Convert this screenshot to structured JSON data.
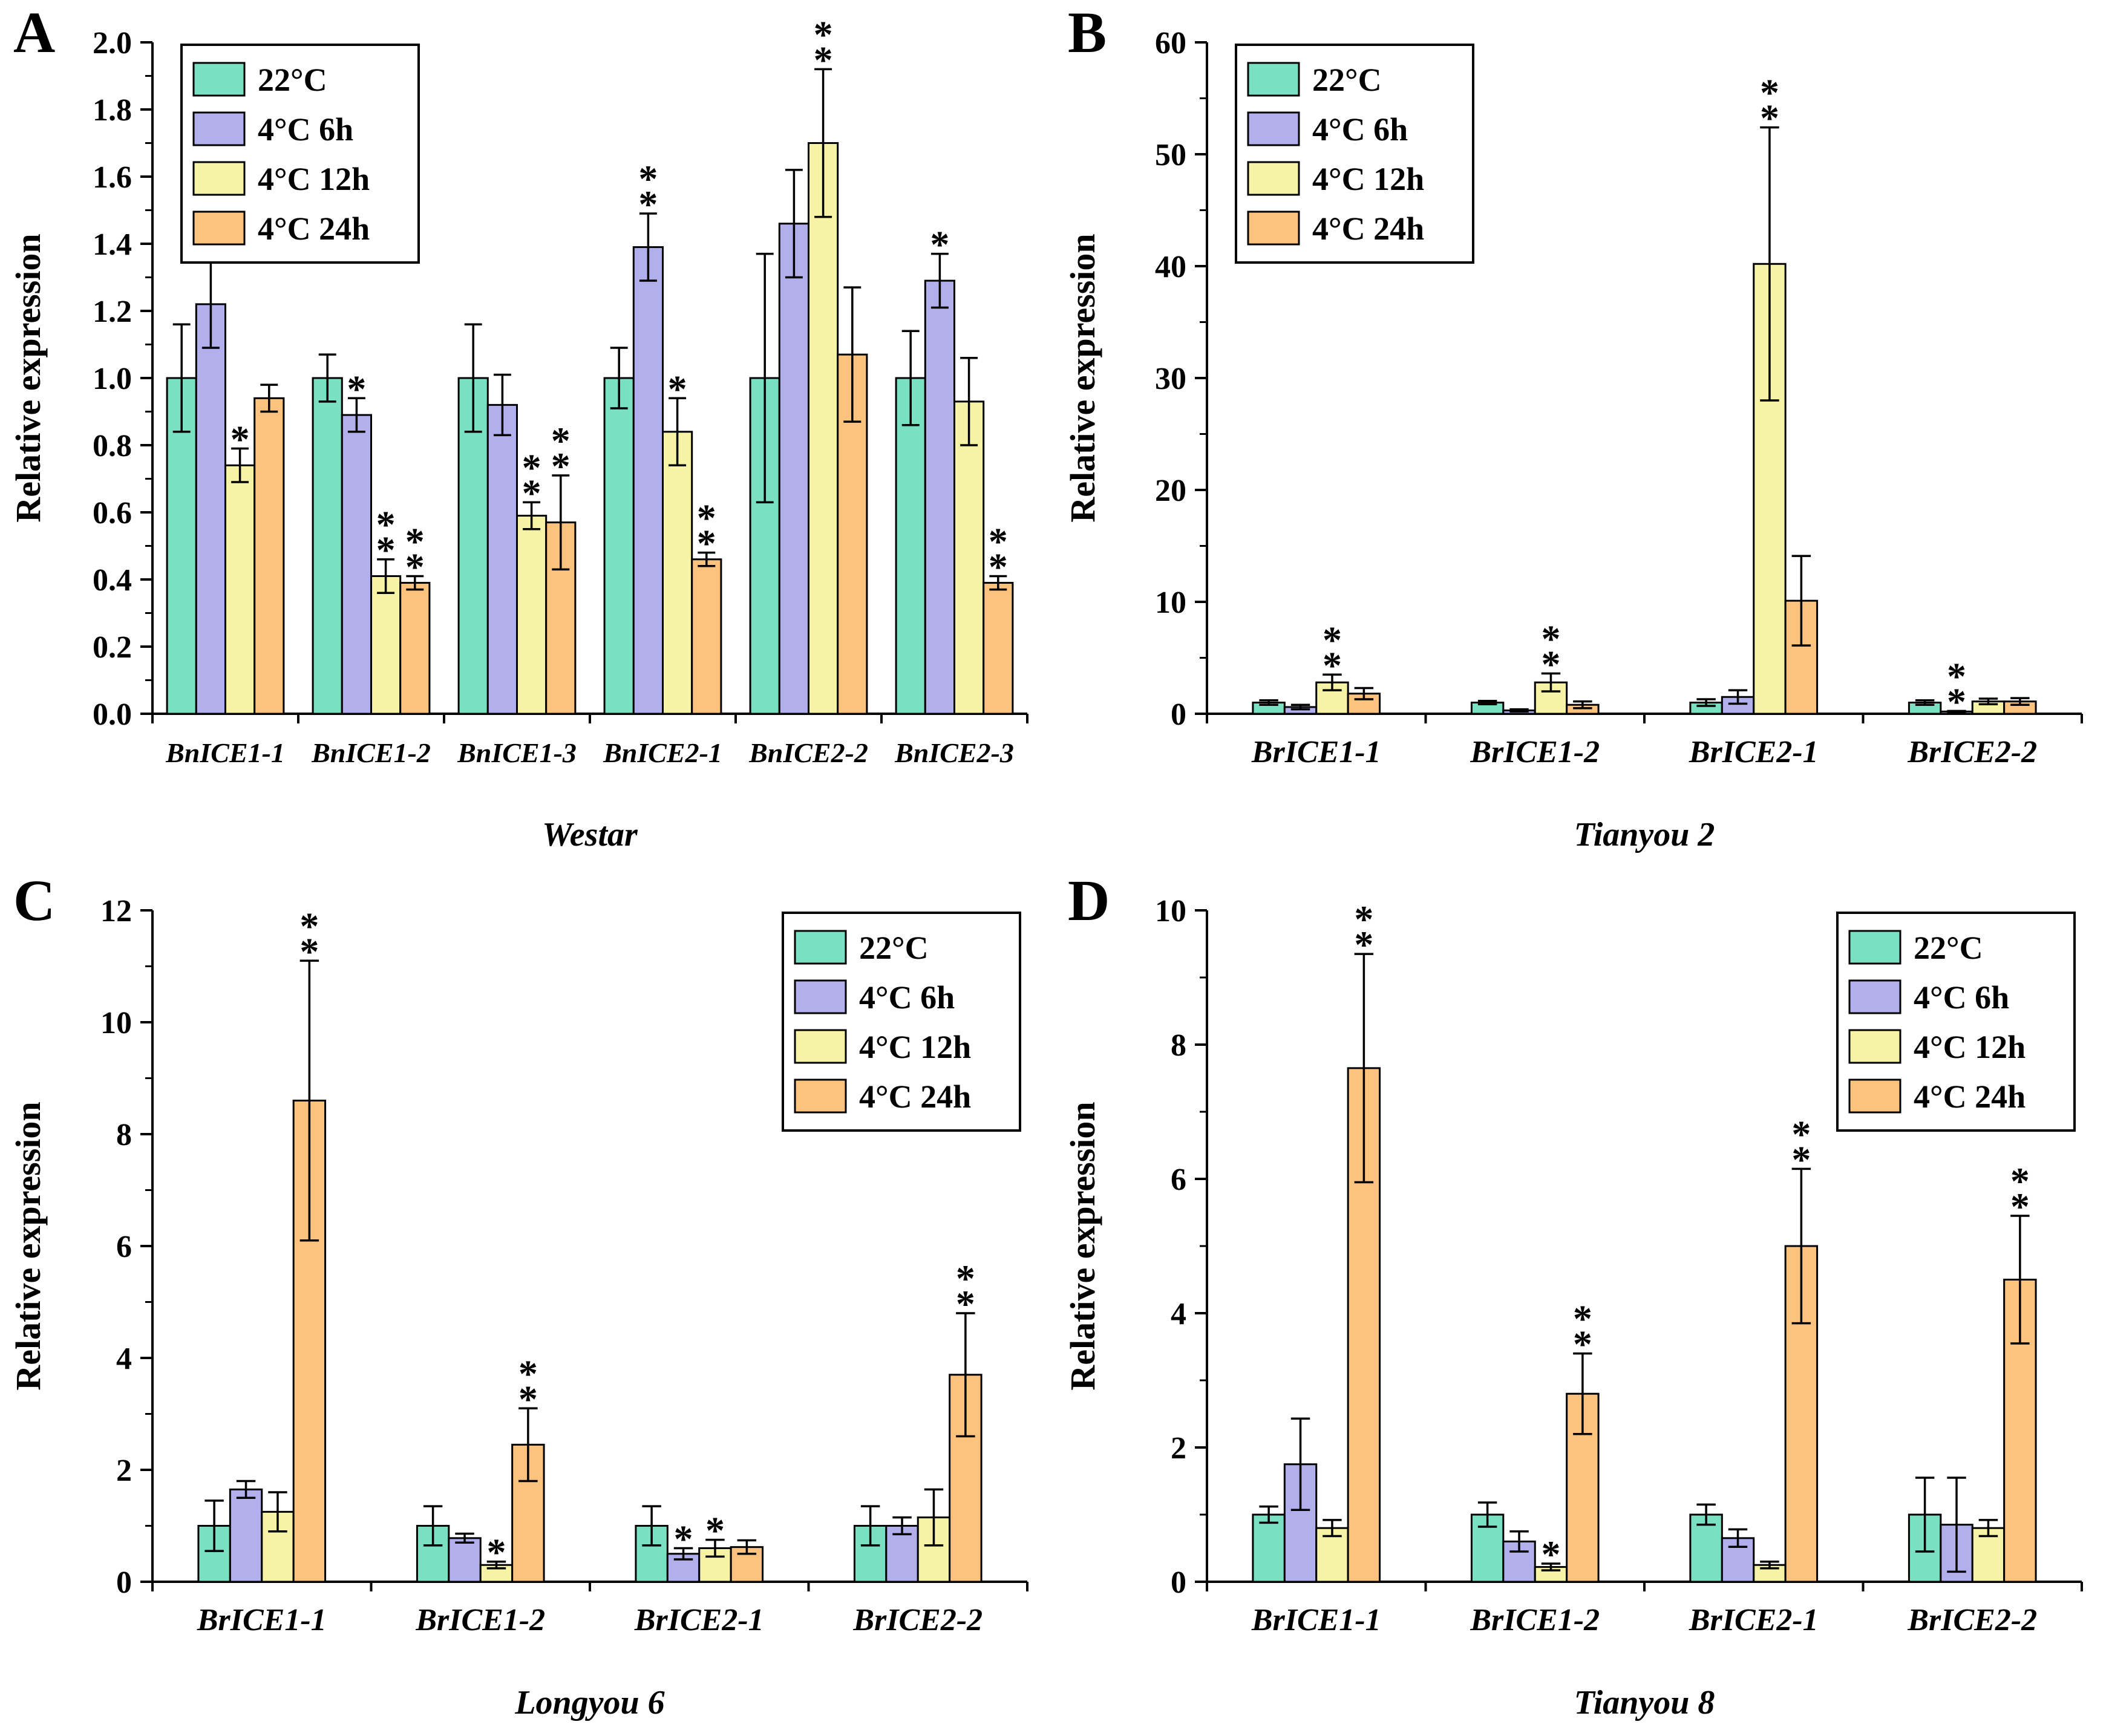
{
  "figure": {
    "background": "#ffffff",
    "ylabel": "Relative expression"
  },
  "legend": {
    "items": [
      {
        "label": "22°C",
        "color": "#79e0c2"
      },
      {
        "label": "4°C 6h",
        "color": "#b2b0ec"
      },
      {
        "label": "4°C 12h",
        "color": "#f7f3a6"
      },
      {
        "label": "4°C 24h",
        "color": "#fbc37e"
      }
    ]
  },
  "style": {
    "axis_color": "#000000",
    "bar_edge_color": "#000000",
    "error_bar_color": "#000000",
    "significance_marker": "*"
  },
  "chart_data": [
    {
      "type": "bar",
      "panel": "A",
      "title": "Westar",
      "ylabel": "Relative expression",
      "ylim": [
        0,
        2.0
      ],
      "ytick_step": 0.2,
      "ytick_decimals": 1,
      "legend_position": "top-left",
      "bar_group_fraction": 0.8,
      "grid": false,
      "categories": [
        "BnICE1-1",
        "BnICE1-2",
        "BnICE1-3",
        "BnICE2-1",
        "BnICE2-2",
        "BnICE2-3"
      ],
      "series": [
        {
          "name": "22°C",
          "values": [
            1.0,
            1.0,
            1.0,
            1.0,
            1.0,
            1.0
          ],
          "errors": [
            0.16,
            0.07,
            0.16,
            0.09,
            0.37,
            0.14
          ],
          "sig": [
            "",
            "",
            "",
            "",
            "",
            ""
          ]
        },
        {
          "name": "4°C 6h",
          "values": [
            1.22,
            0.89,
            0.92,
            1.39,
            1.46,
            1.29
          ],
          "errors": [
            0.13,
            0.05,
            0.09,
            0.1,
            0.16,
            0.08
          ],
          "sig": [
            "*",
            "*",
            "",
            "**",
            "",
            "*"
          ]
        },
        {
          "name": "4°C 12h",
          "values": [
            0.74,
            0.41,
            0.59,
            0.84,
            1.7,
            0.93
          ],
          "errors": [
            0.05,
            0.05,
            0.04,
            0.1,
            0.22,
            0.13
          ],
          "sig": [
            "*",
            "**",
            "**",
            "*",
            "**",
            ""
          ]
        },
        {
          "name": "4°C 24h",
          "values": [
            0.94,
            0.39,
            0.57,
            0.46,
            1.07,
            0.39
          ],
          "errors": [
            0.04,
            0.02,
            0.14,
            0.02,
            0.2,
            0.02
          ],
          "sig": [
            "",
            "**",
            "**",
            "**",
            "",
            "**"
          ]
        }
      ]
    },
    {
      "type": "bar",
      "panel": "B",
      "title": "Tianyou 2",
      "ylabel": "Relative expression",
      "ylim": [
        0,
        60
      ],
      "ytick_step": 10,
      "ytick_decimals": 0,
      "legend_position": "top-left",
      "bar_group_fraction": 0.58,
      "grid": false,
      "categories": [
        "BrICE1-1",
        "BrICE1-2",
        "BrICE2-1",
        "BrICE2-2"
      ],
      "series": [
        {
          "name": "22°C",
          "values": [
            1.0,
            1.0,
            1.0,
            1.0
          ],
          "errors": [
            0.2,
            0.15,
            0.3,
            0.2
          ],
          "sig": [
            "",
            "",
            "",
            ""
          ]
        },
        {
          "name": "4°C 6h",
          "values": [
            0.6,
            0.3,
            1.5,
            0.2
          ],
          "errors": [
            0.2,
            0.1,
            0.6,
            0.05
          ],
          "sig": [
            "",
            "",
            "",
            "**"
          ]
        },
        {
          "name": "4°C 12h",
          "values": [
            2.8,
            2.8,
            40.2,
            1.1
          ],
          "errors": [
            0.7,
            0.8,
            12.2,
            0.25
          ],
          "sig": [
            "**",
            "**",
            "**",
            ""
          ]
        },
        {
          "name": "4°C 24h",
          "values": [
            1.8,
            0.8,
            10.1,
            1.1
          ],
          "errors": [
            0.5,
            0.3,
            4.0,
            0.3
          ],
          "sig": [
            "",
            "",
            "",
            ""
          ]
        }
      ]
    },
    {
      "type": "bar",
      "panel": "C",
      "title": "Longyou 6",
      "ylabel": "Relative expression",
      "ylim": [
        0,
        12
      ],
      "ytick_step": 2,
      "ytick_decimals": 0,
      "legend_position": "top-right",
      "bar_group_fraction": 0.58,
      "grid": false,
      "categories": [
        "BrICE1-1",
        "BrICE1-2",
        "BrICE2-1",
        "BrICE2-2"
      ],
      "series": [
        {
          "name": "22°C",
          "values": [
            1.0,
            1.0,
            1.0,
            1.0
          ],
          "errors": [
            0.45,
            0.35,
            0.35,
            0.35
          ],
          "sig": [
            "",
            "",
            "",
            ""
          ]
        },
        {
          "name": "4°C 6h",
          "values": [
            1.65,
            0.78,
            0.5,
            1.0
          ],
          "errors": [
            0.15,
            0.08,
            0.1,
            0.15
          ],
          "sig": [
            "",
            "",
            "*",
            ""
          ]
        },
        {
          "name": "4°C 12h",
          "values": [
            1.25,
            0.3,
            0.6,
            1.15
          ],
          "errors": [
            0.35,
            0.06,
            0.15,
            0.5
          ],
          "sig": [
            "",
            "*",
            "*",
            ""
          ]
        },
        {
          "name": "4°C 24h",
          "values": [
            8.6,
            2.45,
            0.62,
            3.7
          ],
          "errors": [
            2.5,
            0.65,
            0.12,
            1.1
          ],
          "sig": [
            "**",
            "**",
            "",
            "**"
          ]
        }
      ]
    },
    {
      "type": "bar",
      "panel": "D",
      "title": "Tianyou 8",
      "ylabel": "Relative expression",
      "ylim": [
        0,
        10
      ],
      "ytick_step": 2,
      "ytick_decimals": 0,
      "legend_position": "top-right",
      "bar_group_fraction": 0.58,
      "grid": false,
      "categories": [
        "BrICE1-1",
        "BrICE1-2",
        "BrICE2-1",
        "BrICE2-2"
      ],
      "series": [
        {
          "name": "22°C",
          "values": [
            1.0,
            1.0,
            1.0,
            1.0
          ],
          "errors": [
            0.12,
            0.18,
            0.15,
            0.55
          ],
          "sig": [
            "",
            "",
            "",
            ""
          ]
        },
        {
          "name": "4°C 6h",
          "values": [
            1.75,
            0.6,
            0.65,
            0.85
          ],
          "errors": [
            0.68,
            0.15,
            0.13,
            0.7
          ],
          "sig": [
            "",
            "",
            "",
            ""
          ]
        },
        {
          "name": "4°C 12h",
          "values": [
            0.8,
            0.22,
            0.25,
            0.8
          ],
          "errors": [
            0.12,
            0.05,
            0.05,
            0.12
          ],
          "sig": [
            "",
            "*",
            "",
            ""
          ]
        },
        {
          "name": "4°C 24h",
          "values": [
            7.65,
            2.8,
            5.0,
            4.5
          ],
          "errors": [
            1.7,
            0.6,
            1.15,
            0.95
          ],
          "sig": [
            "**",
            "**",
            "**",
            "**"
          ]
        }
      ]
    }
  ]
}
